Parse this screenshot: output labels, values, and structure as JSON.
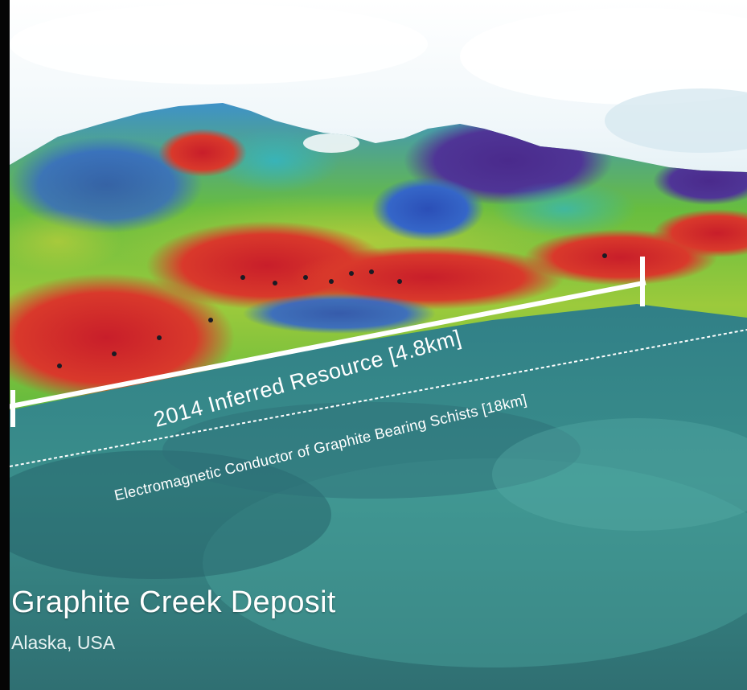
{
  "image": {
    "title": "Graphite Creek Deposit",
    "subtitle": "Alaska, USA",
    "annotations": {
      "inferred_resource": "2014 Inferred Resource [4.8km]",
      "conductor": "Electromagnetic Conductor of Graphite Bearing Schists [18km]"
    },
    "colors": {
      "sky": "#eef7fb",
      "terrain_high": "#c8242c",
      "terrain_mid": "#7cc63b",
      "terrain_low": "#3b5fc2",
      "terrain_very_low": "#4a2f8e",
      "foreground": "#3f8f8c",
      "annotation": "#ffffff"
    }
  }
}
